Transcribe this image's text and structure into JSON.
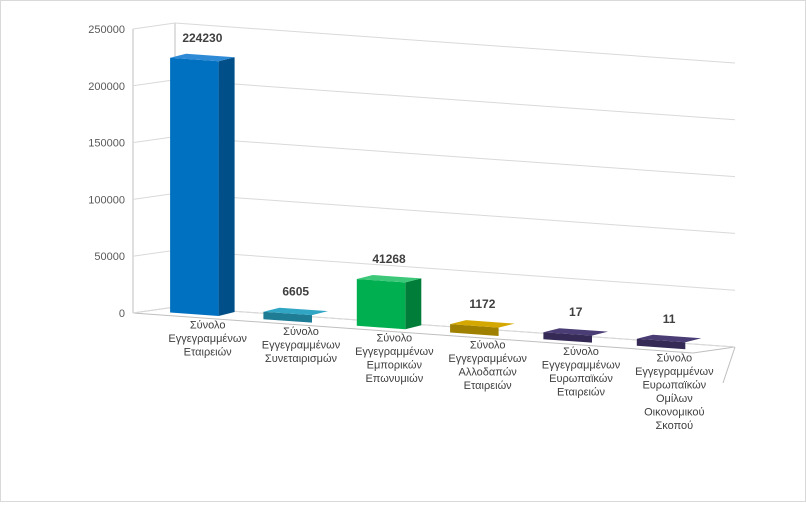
{
  "chart_data": {
    "type": "bar",
    "title": "",
    "xlabel": "",
    "ylabel": "",
    "ylim": [
      0,
      250000
    ],
    "yticks": [
      "0",
      "50000",
      "100000",
      "150000",
      "200000",
      "250000"
    ],
    "grid": true,
    "legend": "none",
    "categories": [
      [
        "Σύνολο",
        "Εγγεγραμμένων",
        "Εταιρειών"
      ],
      [
        "Σύνολο",
        "Εγγεγραμμένων",
        "Συνεταιρισμών"
      ],
      [
        "Σύνολο",
        "Εγγεγραμμένων",
        "Εμπορικών",
        "Επωνυμιών"
      ],
      [
        "Σύνολο",
        "Εγγεγραμμένων",
        "Αλλοδαπών",
        "Εταιρειών"
      ],
      [
        "Σύνολο",
        "Εγγεγραμμένων",
        "Ευρωπαϊκών",
        "Εταιρειών"
      ],
      [
        "Σύνολο",
        "Εγγεγραμμένων",
        "Ευρωπαϊκών",
        "Ομίλων",
        "Οικονομικού",
        "Σκοπού"
      ]
    ],
    "values": [
      224230,
      6605,
      41268,
      1172,
      17,
      11
    ],
    "data_labels": [
      "224230",
      "6605",
      "41268",
      "1172",
      "17",
      "11"
    ],
    "colors": [
      {
        "front": "#0070c0",
        "side": "#004f88",
        "top": "#2f8ad6"
      },
      {
        "front": "#31a5c4",
        "side": "#1f7c95",
        "top": "#4fb9d6"
      },
      {
        "front": "#00b050",
        "side": "#007d38",
        "top": "#3cc878"
      },
      {
        "front": "#d4a800",
        "side": "#a08000",
        "top": "#e8be14"
      },
      {
        "front": "#4a3c74",
        "side": "#352a55",
        "top": "#5e4c8c"
      },
      {
        "front": "#4a3c74",
        "side": "#352a55",
        "top": "#5e4c8c"
      }
    ]
  }
}
